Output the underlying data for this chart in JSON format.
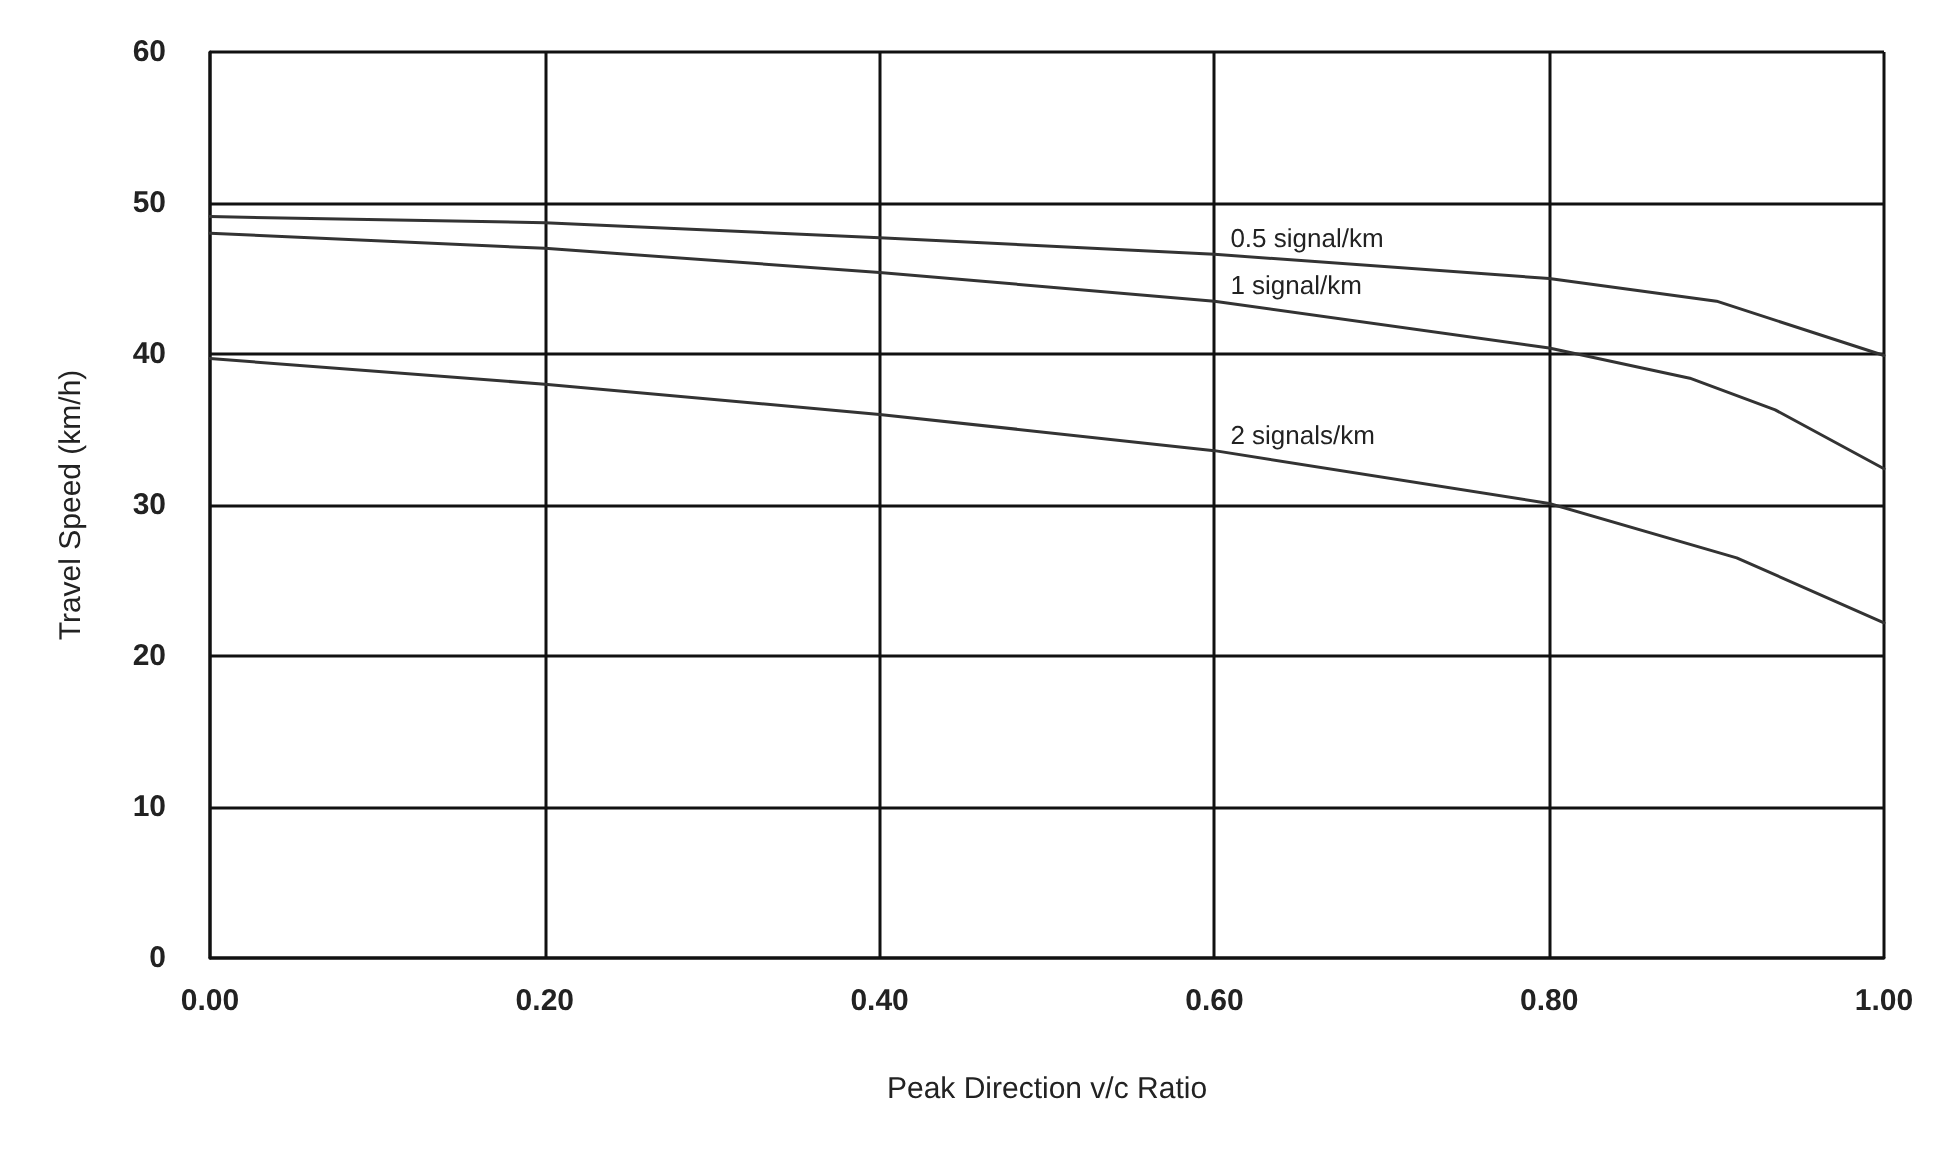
{
  "chart_data": {
    "type": "line",
    "xlabel": "Peak Direction v/c Ratio",
    "ylabel": "Travel Speed (km/h)",
    "xlim": [
      0,
      1
    ],
    "xticks": [
      {
        "value": 0,
        "label": "0.00"
      },
      {
        "value": 0.2,
        "label": "0.20"
      },
      {
        "value": 0.4,
        "label": "0.40"
      },
      {
        "value": 0.6,
        "label": "0.60"
      },
      {
        "value": 0.8,
        "label": "0.80"
      },
      {
        "value": 1,
        "label": "1.00"
      }
    ],
    "ylim": [
      0,
      60
    ],
    "yticks": [
      0,
      10,
      20,
      30,
      40,
      50,
      60
    ],
    "grid": true,
    "legend": false,
    "marker": "none",
    "line_style": "solid",
    "series": [
      {
        "name": "0.5 signal/km",
        "color": "#333333",
        "x": [
          0,
          0.2,
          0.4,
          0.6,
          0.8,
          0.9,
          1
        ],
        "values": [
          49.1,
          48.7,
          47.7,
          46.6,
          45.0,
          43.5,
          39.9
        ]
      },
      {
        "name": "1 signal/km",
        "color": "#333333",
        "x": [
          0,
          0.2,
          0.4,
          0.6,
          0.8,
          0.884,
          0.935,
          1
        ],
        "values": [
          48.0,
          47.0,
          45.4,
          43.5,
          40.4,
          38.4,
          36.3,
          32.4
        ]
      },
      {
        "name": "2 signals/km",
        "color": "#333333",
        "x": [
          0,
          0.2,
          0.4,
          0.6,
          0.8,
          0.912,
          1
        ],
        "values": [
          39.7,
          38.0,
          36.0,
          33.6,
          30.1,
          26.5,
          22.2
        ]
      }
    ]
  }
}
